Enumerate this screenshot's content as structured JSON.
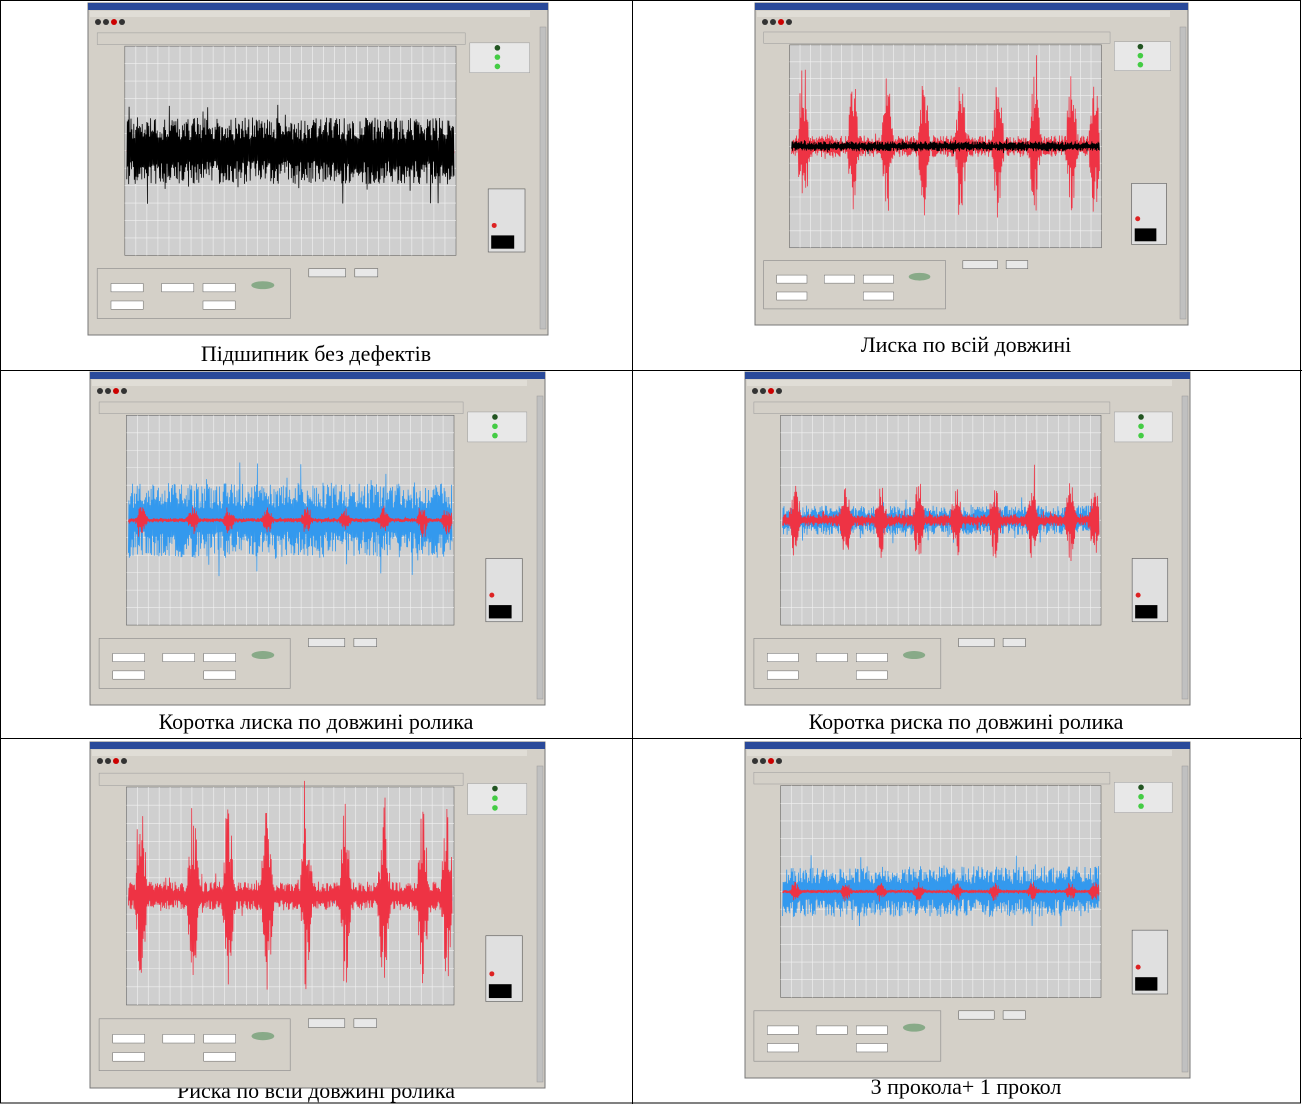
{
  "table": {
    "rows": [
      [
        "Підшипник без дефектів",
        "Лиска по всій довжині"
      ],
      [
        "Коротка лиска по довжині ролика",
        "Коротка риска по довжині ролика"
      ],
      [
        "Риска по всій довжині ролика",
        "3 прокола+ 1 прокол"
      ]
    ]
  }
}
